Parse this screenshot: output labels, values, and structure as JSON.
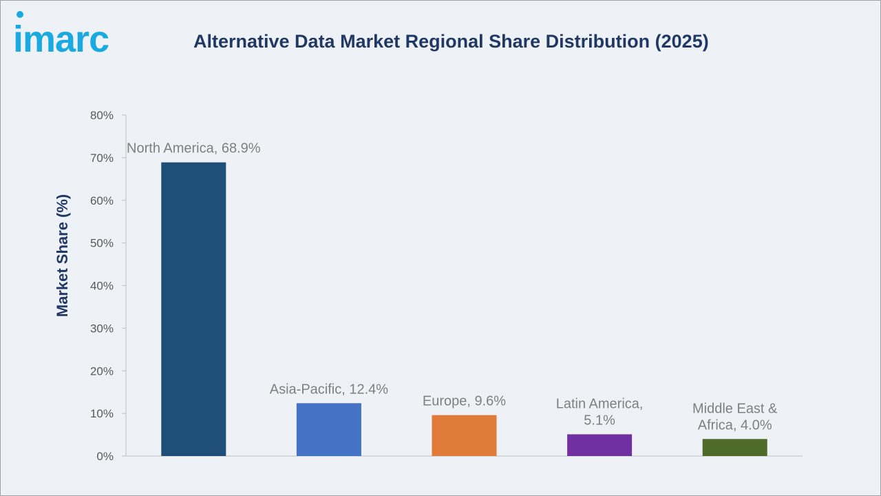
{
  "logo": {
    "text": "imarc",
    "color": "#1ba9e1"
  },
  "header": {
    "title": "Alternative Data Market Regional Share Distribution (2025)"
  },
  "chart_data": {
    "type": "bar",
    "title": "Alternative Data Market Regional Share Distribution (2025)",
    "ylabel": "Market Share (%)",
    "xlabel": "",
    "ylim": [
      0,
      80
    ],
    "yticks": [
      0,
      10,
      20,
      30,
      40,
      50,
      60,
      70,
      80
    ],
    "ytick_labels": [
      "0%",
      "10%",
      "20%",
      "30%",
      "40%",
      "50%",
      "60%",
      "70%",
      "80%"
    ],
    "categories": [
      "North America",
      "Asia-Pacific",
      "Europe",
      "Latin America",
      "Middle East & Africa"
    ],
    "values": [
      68.9,
      12.4,
      9.6,
      5.1,
      4.0
    ],
    "data_labels": [
      [
        "North America, 68.9%"
      ],
      [
        "Asia-Pacific, 12.4%"
      ],
      [
        "Europe, 9.6%"
      ],
      [
        "Latin America,",
        "5.1%"
      ],
      [
        "Middle East &",
        "Africa, 4.0%"
      ]
    ],
    "colors": [
      "#1f4e79",
      "#4472c4",
      "#e07b39",
      "#7030a0",
      "#4e6b2a"
    ],
    "grid": false,
    "legend": "none"
  }
}
